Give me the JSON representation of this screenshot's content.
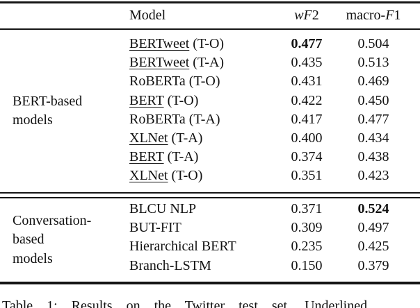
{
  "colors": {
    "background": "#ffffff",
    "text": "#111111",
    "rule": "#151515"
  },
  "table": {
    "header": {
      "model_label": "Model",
      "wf2_runs": [
        {
          "text": "wF",
          "italic": true
        },
        {
          "text": "2",
          "italic": false
        }
      ],
      "macro_f1_runs": [
        {
          "text": "macro-",
          "italic": false
        },
        {
          "text": "F",
          "italic": true
        },
        {
          "text": "1",
          "italic": false
        }
      ]
    },
    "sections": [
      {
        "group_lines": [
          "BERT-based",
          "models"
        ],
        "rows": [
          {
            "model": "BERTweet",
            "variant": " (T-O)",
            "underlined": true,
            "wf2": "0.477",
            "wf2_bold": true,
            "macro_f1": "0.504",
            "macro_f1_bold": false
          },
          {
            "model": "BERTweet",
            "variant": " (T-A)",
            "underlined": true,
            "wf2": "0.435",
            "wf2_bold": false,
            "macro_f1": "0.513",
            "macro_f1_bold": false
          },
          {
            "model": "RoBERTa",
            "variant": " (T-O)",
            "underlined": false,
            "wf2": "0.431",
            "wf2_bold": false,
            "macro_f1": "0.469",
            "macro_f1_bold": false
          },
          {
            "model": "BERT",
            "variant": " (T-O)",
            "underlined": true,
            "wf2": "0.422",
            "wf2_bold": false,
            "macro_f1": "0.450",
            "macro_f1_bold": false
          },
          {
            "model": "RoBERTa",
            "variant": " (T-A)",
            "underlined": false,
            "wf2": "0.417",
            "wf2_bold": false,
            "macro_f1": "0.477",
            "macro_f1_bold": false
          },
          {
            "model": "XLNet",
            "variant": " (T-A)",
            "underlined": true,
            "wf2": "0.400",
            "wf2_bold": false,
            "macro_f1": "0.434",
            "macro_f1_bold": false
          },
          {
            "model": "BERT",
            "variant": " (T-A)",
            "underlined": true,
            "wf2": "0.374",
            "wf2_bold": false,
            "macro_f1": "0.438",
            "macro_f1_bold": false
          },
          {
            "model": "XLNet",
            "variant": " (T-O)",
            "underlined": true,
            "wf2": "0.351",
            "wf2_bold": false,
            "macro_f1": "0.423",
            "macro_f1_bold": false
          }
        ]
      },
      {
        "group_lines": [
          "Conversation-",
          "based",
          "models"
        ],
        "rows": [
          {
            "model": "BLCU NLP",
            "variant": "",
            "underlined": false,
            "wf2": "0.371",
            "wf2_bold": false,
            "macro_f1": "0.524",
            "macro_f1_bold": true
          },
          {
            "model": "BUT-FIT",
            "variant": "",
            "underlined": false,
            "wf2": "0.309",
            "wf2_bold": false,
            "macro_f1": "0.497",
            "macro_f1_bold": false
          },
          {
            "model": "Hierarchical BERT",
            "variant": "",
            "underlined": false,
            "wf2": "0.235",
            "wf2_bold": false,
            "macro_f1": "0.425",
            "macro_f1_bold": false
          },
          {
            "model": "Branch-LSTM",
            "variant": "",
            "underlined": false,
            "wf2": "0.150",
            "wf2_bold": false,
            "macro_f1": "0.379",
            "macro_f1_bold": false
          }
        ]
      }
    ]
  },
  "caption": "Table 1: Results on the Twitter test set. Underlined"
}
